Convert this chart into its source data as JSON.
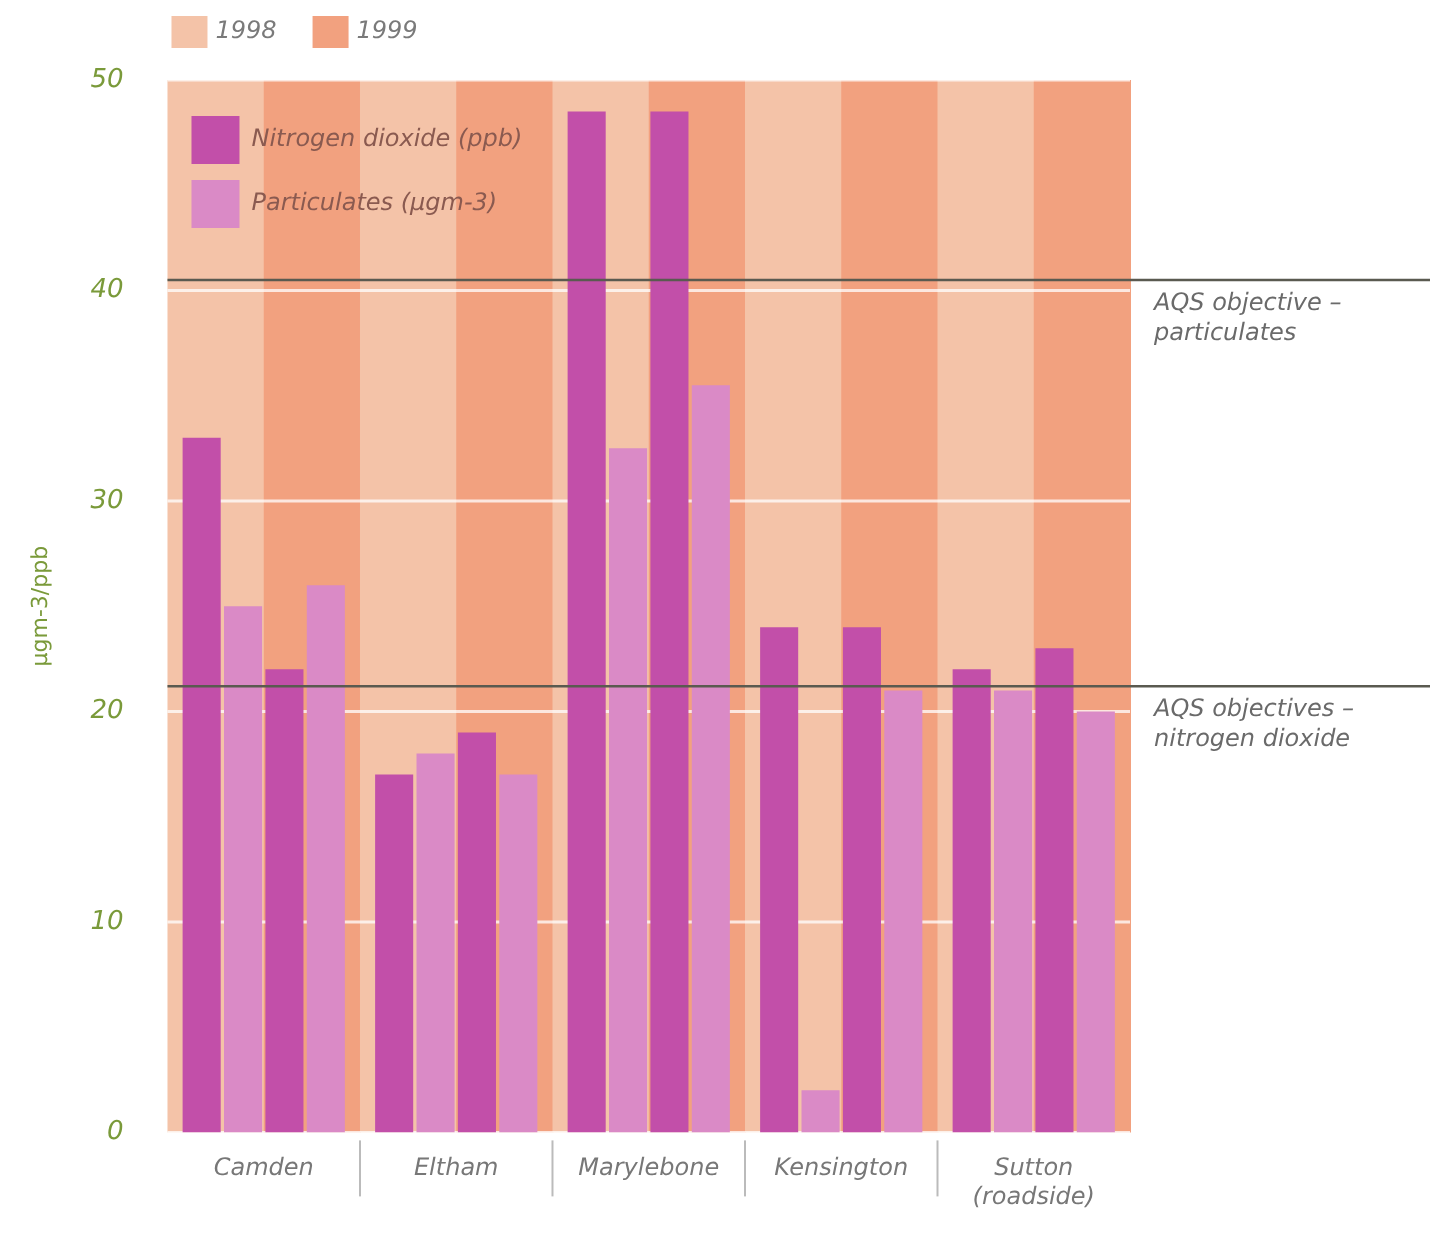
{
  "chart_data": {
    "type": "bar",
    "ylabel": "µgm-3/ppb",
    "categories": [
      "Camden",
      "Eltham",
      "Marylebone",
      "Kensington",
      "Sutton (roadside)"
    ],
    "series": [
      {
        "name": "Nitrogen dioxide (ppb)",
        "color": "#c24fa9",
        "values": [
          33,
          17,
          48.5,
          24,
          22
        ]
      },
      {
        "name": "Particulates (µgm-3)",
        "color": "#da8ac6",
        "values": [
          25,
          18,
          32.5,
          2,
          21
        ]
      },
      {
        "color": "#c24fa9",
        "values": [
          22,
          19,
          48.5,
          24,
          23
        ]
      },
      {
        "color": "#da8ac6",
        "values": [
          26,
          17,
          35.5,
          21,
          20
        ]
      }
    ],
    "bands": [
      {
        "axis": "x",
        "from": "Camden",
        "to": "Camden",
        "label": "1998",
        "color": "#f4c3a8"
      },
      {
        "axis": "x",
        "from": "Camden",
        "to": "Camden",
        "label": "1999",
        "color": "#f2a17f"
      },
      {
        "axis": "x",
        "from": "Eltham",
        "to": "Eltham",
        "color": "#f4c3a8"
      },
      {
        "axis": "x",
        "from": "Eltham",
        "to": "Eltham",
        "color": "#f2a17f"
      },
      {
        "axis": "x",
        "from": "Marylebone",
        "to": "Marylebone",
        "color": "#f4c3a8"
      },
      {
        "axis": "x",
        "from": "Marylebone",
        "to": "Marylebone",
        "color": "#f2a17f"
      },
      {
        "axis": "x",
        "from": "Kensington",
        "to": "Kensington",
        "color": "#f4c3a8"
      },
      {
        "axis": "x",
        "from": "Kensington",
        "to": "Kensington",
        "color": "#f2a17f"
      },
      {
        "axis": "x",
        "from": "Sutton (roadside)",
        "to": "Sutton (roadside)",
        "color": "#f4c3a8"
      },
      {
        "axis": "x",
        "from": "Sutton (roadside)",
        "to": "Sutton (roadside)",
        "color": "#f2a17f"
      }
    ],
    "ref_lines": [
      {
        "axis": "y",
        "value": 40.5,
        "label": "AQS objective – particulates",
        "color": "#5a5a50"
      },
      {
        "axis": "y",
        "value": 21.2,
        "label": "AQS objectives – nitrogen dioxide",
        "color": "#5a5a50"
      }
    ],
    "ylim": [
      0,
      50
    ],
    "yticks": [
      0,
      10,
      20,
      30,
      40,
      50
    ],
    "grid": "y",
    "legend": "top left"
  }
}
